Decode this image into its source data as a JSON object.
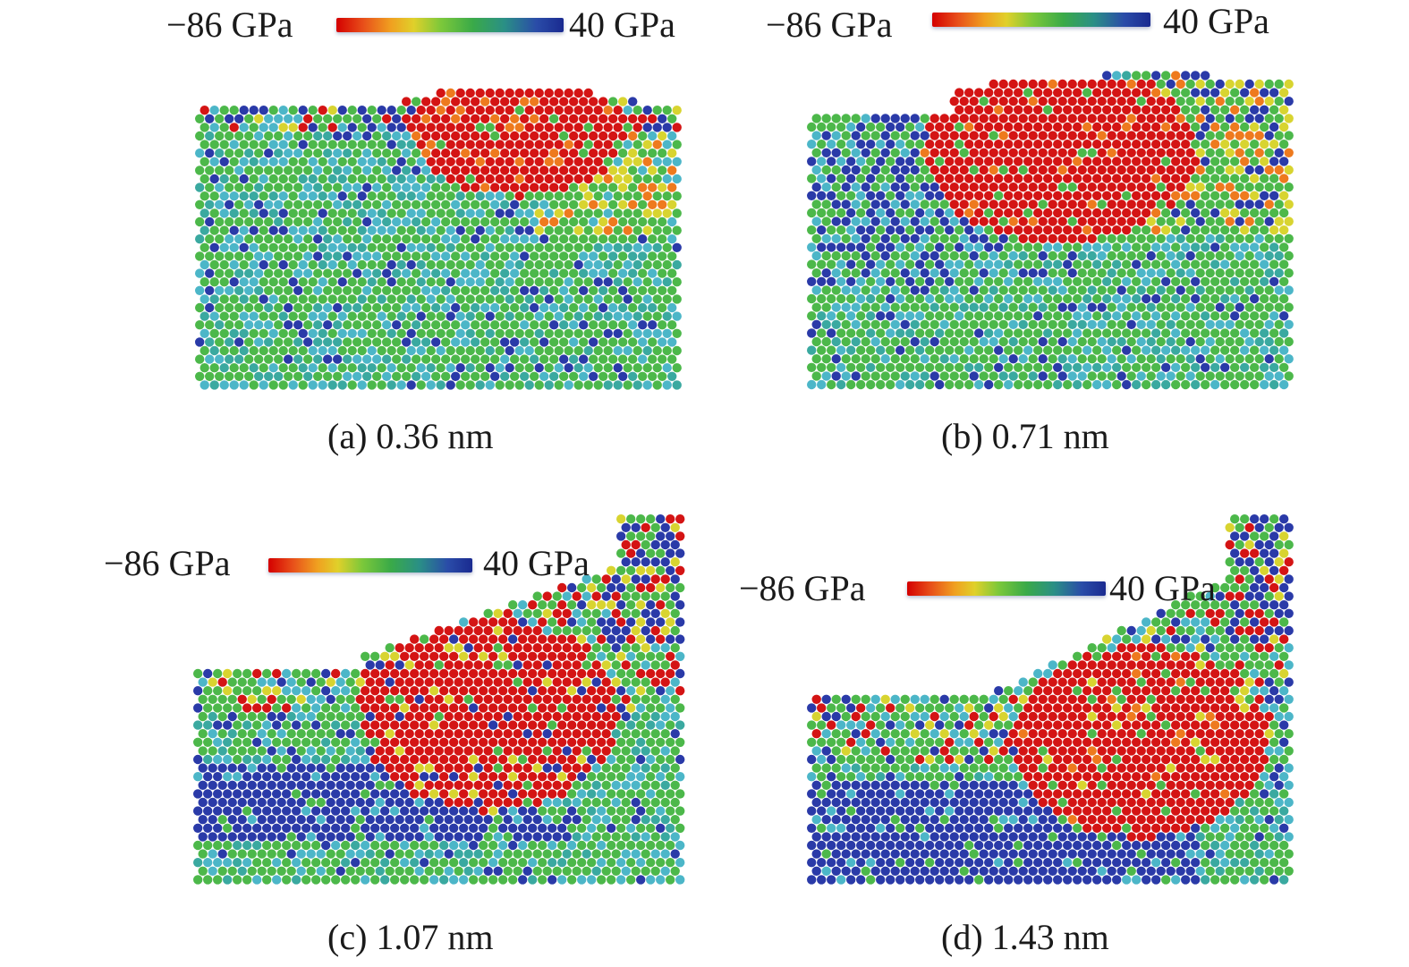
{
  "colorbar": {
    "min_label": "−86 GPa",
    "max_label": "40 GPa",
    "colors": [
      "#d40000",
      "#e8501a",
      "#f0a020",
      "#e0d02a",
      "#7cc83a",
      "#3aaa48",
      "#2a8f86",
      "#2a4ca8",
      "#1a2a90"
    ]
  },
  "panels": [
    {
      "caption": "(a) 0.36 nm"
    },
    {
      "caption": "(b) 0.71 nm"
    },
    {
      "caption": "(c) 1.07 nm"
    },
    {
      "caption": "(d) 1.43 nm"
    }
  ]
}
